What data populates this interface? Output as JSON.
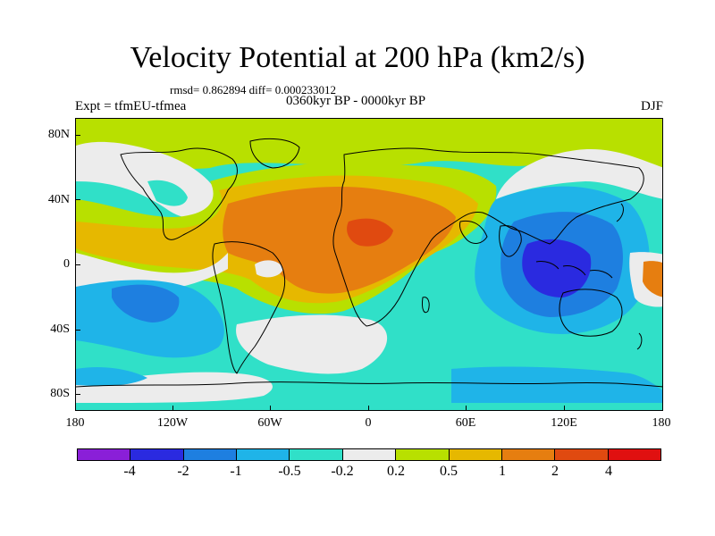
{
  "title": "Velocity Potential at 200 hPa (km2/s)",
  "stats": "rmsd= 0.862894 diff= 0.000233012",
  "left_label": "Expt = tfmEU-tfmea",
  "center_label": "0360kyr BP - 0000kyr BP",
  "right_label": "DJF",
  "lat_labels": [
    "80N",
    "40N",
    "0",
    "40S",
    "80S"
  ],
  "lon_labels": [
    "180",
    "120W",
    "60W",
    "0",
    "60E",
    "120E",
    "180"
  ],
  "colorbar": {
    "colors": [
      "#8a1fd8",
      "#2a2ae0",
      "#1e7fe0",
      "#1fb4e8",
      "#30e0c8",
      "#ececec",
      "#b8e000",
      "#e6b800",
      "#e67e10",
      "#e04a10",
      "#e01010"
    ],
    "labels": [
      "-4",
      "-2",
      "-1",
      "-0.5",
      "-0.2",
      "0.2",
      "0.5",
      "1",
      "2",
      "4"
    ]
  },
  "colors": {
    "ocean_gray": "#ececec",
    "green_yellow": "#b8e000",
    "orange": "#e67e10",
    "dark_orange": "#e04a10",
    "cyan": "#30e0c8",
    "light_blue": "#1fb4e8",
    "blue": "#1e7fe0",
    "dark_blue": "#2a2ae0",
    "gold": "#e6b800"
  }
}
